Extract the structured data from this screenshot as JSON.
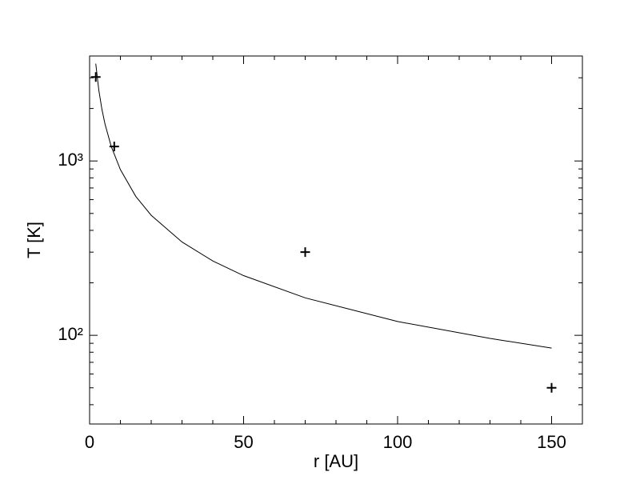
{
  "chart_data": {
    "type": "line",
    "xlabel": "r [AU]",
    "ylabel": "T [K]",
    "xlim": [
      0,
      160
    ],
    "xticks": [
      0,
      50,
      100,
      150
    ],
    "xminor_ticks": [
      10,
      20,
      30,
      40,
      60,
      70,
      80,
      90,
      110,
      120,
      130,
      140,
      160
    ],
    "ylim": [
      31,
      4000
    ],
    "ylog": true,
    "yticks": [
      {
        "value": 100,
        "label": "10²"
      },
      {
        "value": 1000,
        "label": "10³"
      }
    ],
    "yminor_ticks": [
      40,
      50,
      60,
      70,
      80,
      90,
      200,
      300,
      400,
      500,
      600,
      700,
      800,
      900,
      2000,
      3000
    ],
    "series": [
      {
        "type": "line",
        "color": "#000000",
        "x": [
          2,
          3,
          4,
          5,
          7,
          10,
          15,
          20,
          30,
          40,
          50,
          70,
          100,
          130,
          150
        ],
        "values": [
          3616,
          2542,
          1978,
          1629,
          1215,
          892,
          626,
          488,
          343,
          267,
          220,
          164,
          120,
          96,
          84.5
        ]
      },
      {
        "type": "scatter",
        "marker": "+",
        "color": "#000000",
        "x": [
          2,
          8,
          70,
          150
        ],
        "values": [
          3030,
          1210,
          300,
          50
        ]
      }
    ]
  }
}
